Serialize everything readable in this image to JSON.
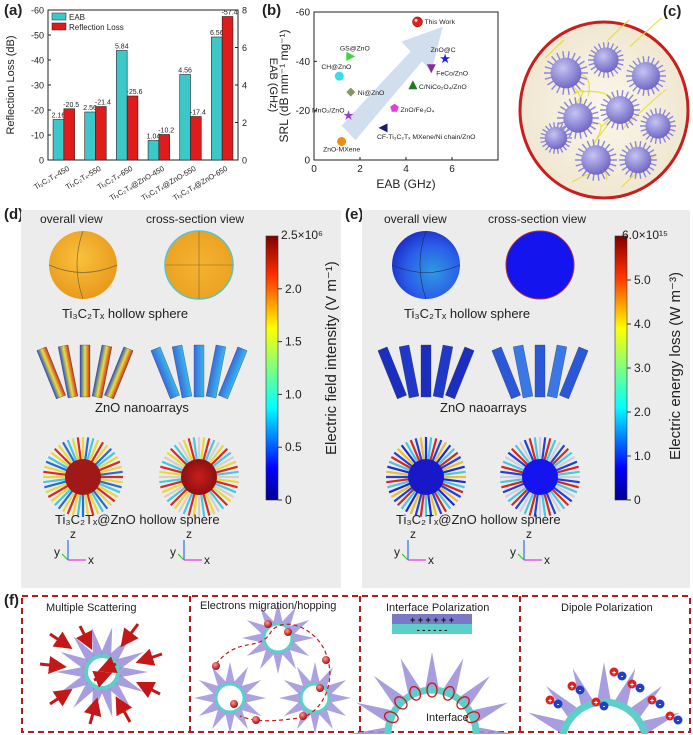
{
  "panel_labels": {
    "a": "(a)",
    "b": "(b)",
    "c": "(c)",
    "d": "(d)",
    "e": "(e)",
    "f": "(f)"
  },
  "chart_data": [
    {
      "type": "bar",
      "categories": [
        "Ti₃C₂Tₓ-450",
        "Ti₃C₂Tₓ-550",
        "Ti₃C₂Tₓ-650",
        "Ti₃C₂Tₓ@ZnO-450",
        "Ti₃C₂Tₓ@ZnO-550",
        "Ti₃C₂Tₓ@ZnO-650"
      ],
      "series": [
        {
          "name": "EAB",
          "axis": "right",
          "values": [
            2.16,
            2.56,
            5.84,
            1.04,
            4.56,
            6.56
          ],
          "labels": [
            "2.16",
            "2.56",
            "5.84",
            "1.04",
            "4.56",
            "6.56"
          ],
          "color": "#3cc8c8"
        },
        {
          "name": "Reflection Loss",
          "axis": "left",
          "values": [
            -20.5,
            -21.4,
            -25.6,
            -10.2,
            -17.4,
            -57.4
          ],
          "labels": [
            "-20.5",
            "-21.4",
            "-25.6",
            "-10.2",
            "-17.4",
            "-57.4"
          ],
          "color": "#e01b1b"
        }
      ],
      "ylabel": "Reflection Loss (dB)",
      "ylabel_right": "EAB (GHz)",
      "ylim": [
        0,
        -60
      ],
      "ylim_right": [
        0,
        8
      ],
      "yticks": [
        "0",
        "-10",
        "-20",
        "-30",
        "-40",
        "-50",
        "-60"
      ],
      "yticks_right": [
        "0",
        "2",
        "4",
        "6",
        "8"
      ],
      "legend_position": "top-left"
    },
    {
      "type": "scatter",
      "xlabel": "EAB (GHz)",
      "ylabel": "SRL (dB mm⁻¹ mg⁻¹)",
      "xlim": [
        0,
        8
      ],
      "ylim": [
        0,
        -60
      ],
      "xticks": [
        "0",
        "2",
        "4",
        "6"
      ],
      "yticks": [
        "0",
        "-20",
        "-40",
        "-60"
      ],
      "points": [
        {
          "label": "This Work",
          "x": 4.5,
          "y": -56,
          "marker": "ball",
          "color": "#e0201e"
        },
        {
          "label": "CH@ZnO",
          "x": 1.1,
          "y": -34,
          "marker": "circle",
          "color": "#35e0ea"
        },
        {
          "label": "GS@ZnO",
          "x": 1.6,
          "y": -42,
          "marker": "triangle-right",
          "color": "#38d838"
        },
        {
          "label": "Ni@ZnO",
          "x": 1.6,
          "y": -27.5,
          "marker": "diamond",
          "color": "#8a9460"
        },
        {
          "label": "ZnO@C",
          "x": 5.7,
          "y": -41,
          "marker": "star",
          "color": "#2020e8"
        },
        {
          "label": "FeCo/ZnO",
          "x": 5.1,
          "y": -37,
          "marker": "triangle-down",
          "color": "#8b2c9e"
        },
        {
          "label": "C/NiCo₂O₄/ZnO",
          "x": 4.3,
          "y": -30.5,
          "marker": "triangle-up",
          "color": "#1e7a1e"
        },
        {
          "label": "ZnO/Fe₃O₄",
          "x": 3.5,
          "y": -21,
          "marker": "pentagon",
          "color": "#e03ee0"
        },
        {
          "label": "MnO₂/ZnO",
          "x": 1.5,
          "y": -18,
          "marker": "star",
          "color": "#9b3ed8"
        },
        {
          "label": "ZnO-MXene",
          "x": 1.2,
          "y": -7.5,
          "marker": "circle",
          "color": "#f08c14"
        },
        {
          "label": "CF-Ti₃C₂Tₓ MXene/Ni chain/ZnO",
          "x": 3.0,
          "y": -13,
          "marker": "triangle-left",
          "color": "#1a1a6e"
        }
      ]
    }
  ],
  "panel_d": {
    "overall_view": "overall view",
    "cross_section_view": "cross-section view",
    "row1_caption": "Ti₃C₂Tₓ hollow sphere",
    "row2_caption": "ZnO nanoarrays",
    "row3_caption": "Ti₃C₂Tₓ@ZnO hollow sphere",
    "colorbar_title": "Electric field intensity (V m⁻¹)",
    "colorbar_max": "2.5×10⁶",
    "colorbar_ticks": [
      "2.0",
      "1.5",
      "1.0",
      "0.5",
      "0"
    ]
  },
  "panel_e": {
    "overall_view": "overall view",
    "cross_section_view": "cross-section view",
    "row1_caption": "Ti₃C₂Tₓ hollow sphere",
    "row2_caption": "ZnO naoarrays",
    "row3_caption": "Ti₃C₂Tₓ@ZnO hollow sphere",
    "colorbar_title": "Electric energy loss (W m⁻³)",
    "colorbar_max": "6.0×10¹⁵",
    "colorbar_ticks": [
      "5.0",
      "4.0",
      "3.0",
      "2.0",
      "1.0",
      "0"
    ]
  },
  "axes_labels": {
    "z": "z",
    "y": "y",
    "x": "x"
  },
  "panel_f": {
    "titles": [
      "Multiple Scattering",
      "Electrons migration/hopping",
      "Interface Polarization",
      "Dipole Polarization"
    ],
    "interface_label": "Interface",
    "plus_signs": "+ + + + + +",
    "minus_signs": "- - - - - -"
  },
  "colors": {
    "eab_bar": "#3cc8c8",
    "rl_bar": "#e01b1b",
    "panel_bg": "#ececec",
    "dashed_border": "#b01e1e",
    "spike": "#9a8fd8",
    "core_ring": "#5cd0c8"
  }
}
